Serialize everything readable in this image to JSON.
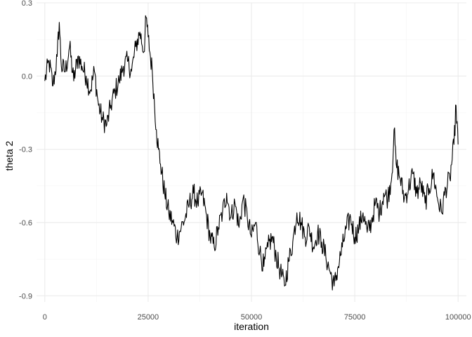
{
  "chart_data": {
    "type": "line",
    "xlabel": "iteration",
    "ylabel": "theta 2",
    "xlim": [
      -2000,
      102000
    ],
    "ylim": [
      -0.925,
      0.3
    ],
    "x_ticks": [
      0,
      25000,
      50000,
      75000,
      100000
    ],
    "x_tick_labels": [
      "0",
      "25000",
      "50000",
      "75000",
      "100000"
    ],
    "y_ticks": [
      0.3,
      0.0,
      -0.3,
      -0.6,
      -0.9
    ],
    "y_tick_labels": [
      "0.3",
      "0.0",
      "-0.3",
      "-0.6",
      "-0.9"
    ],
    "grid": true,
    "line_color": "#000000",
    "series": [
      {
        "x": [
          0,
          1000,
          2000,
          3000,
          3500,
          4000,
          5000,
          6000,
          7000,
          8000,
          9000,
          10000,
          11000,
          12000,
          13000,
          14000,
          15000,
          16000,
          17000,
          18000,
          19000,
          20000,
          21000,
          22000,
          23000,
          24000,
          24500,
          25000,
          26000,
          27000,
          27500,
          28000,
          29000,
          30000,
          31000,
          32000,
          33000,
          34000,
          35000,
          36000,
          37000,
          38000,
          39000,
          40000,
          41000,
          42000,
          43000,
          44000,
          45000,
          46000,
          47000,
          48000,
          49000,
          50000,
          51000,
          52000,
          53000,
          54000,
          55000,
          56000,
          57000,
          58000,
          59000,
          60000,
          61000,
          62000,
          63000,
          64000,
          65000,
          66000,
          67000,
          68000,
          69000,
          70000,
          71000,
          72000,
          73000,
          74000,
          75000,
          76000,
          77000,
          78000,
          79000,
          80000,
          81000,
          82000,
          83000,
          84000,
          84500,
          85000,
          86000,
          87000,
          88000,
          89000,
          90000,
          91000,
          92000,
          93000,
          94000,
          95000,
          96000,
          97000,
          98000,
          99000,
          99500,
          100000
        ],
        "y": [
          -0.02,
          0.06,
          -0.04,
          0.08,
          0.22,
          0.04,
          0.02,
          0.12,
          -0.02,
          0.08,
          0.04,
          0.0,
          -0.06,
          0.02,
          -0.12,
          -0.18,
          -0.2,
          -0.12,
          -0.06,
          -0.02,
          0.04,
          0.06,
          0.02,
          0.12,
          0.18,
          0.1,
          0.24,
          0.16,
          0.02,
          -0.22,
          -0.3,
          -0.36,
          -0.48,
          -0.56,
          -0.6,
          -0.66,
          -0.62,
          -0.58,
          -0.52,
          -0.48,
          -0.52,
          -0.48,
          -0.56,
          -0.66,
          -0.7,
          -0.62,
          -0.56,
          -0.48,
          -0.58,
          -0.52,
          -0.62,
          -0.5,
          -0.58,
          -0.66,
          -0.6,
          -0.72,
          -0.78,
          -0.7,
          -0.66,
          -0.74,
          -0.8,
          -0.86,
          -0.76,
          -0.68,
          -0.56,
          -0.6,
          -0.66,
          -0.62,
          -0.7,
          -0.64,
          -0.68,
          -0.74,
          -0.8,
          -0.86,
          -0.78,
          -0.7,
          -0.62,
          -0.58,
          -0.66,
          -0.62,
          -0.56,
          -0.64,
          -0.6,
          -0.52,
          -0.56,
          -0.48,
          -0.5,
          -0.4,
          -0.22,
          -0.36,
          -0.42,
          -0.5,
          -0.46,
          -0.4,
          -0.48,
          -0.44,
          -0.52,
          -0.46,
          -0.4,
          -0.5,
          -0.56,
          -0.46,
          -0.42,
          -0.28,
          -0.12,
          -0.28
        ]
      }
    ]
  }
}
